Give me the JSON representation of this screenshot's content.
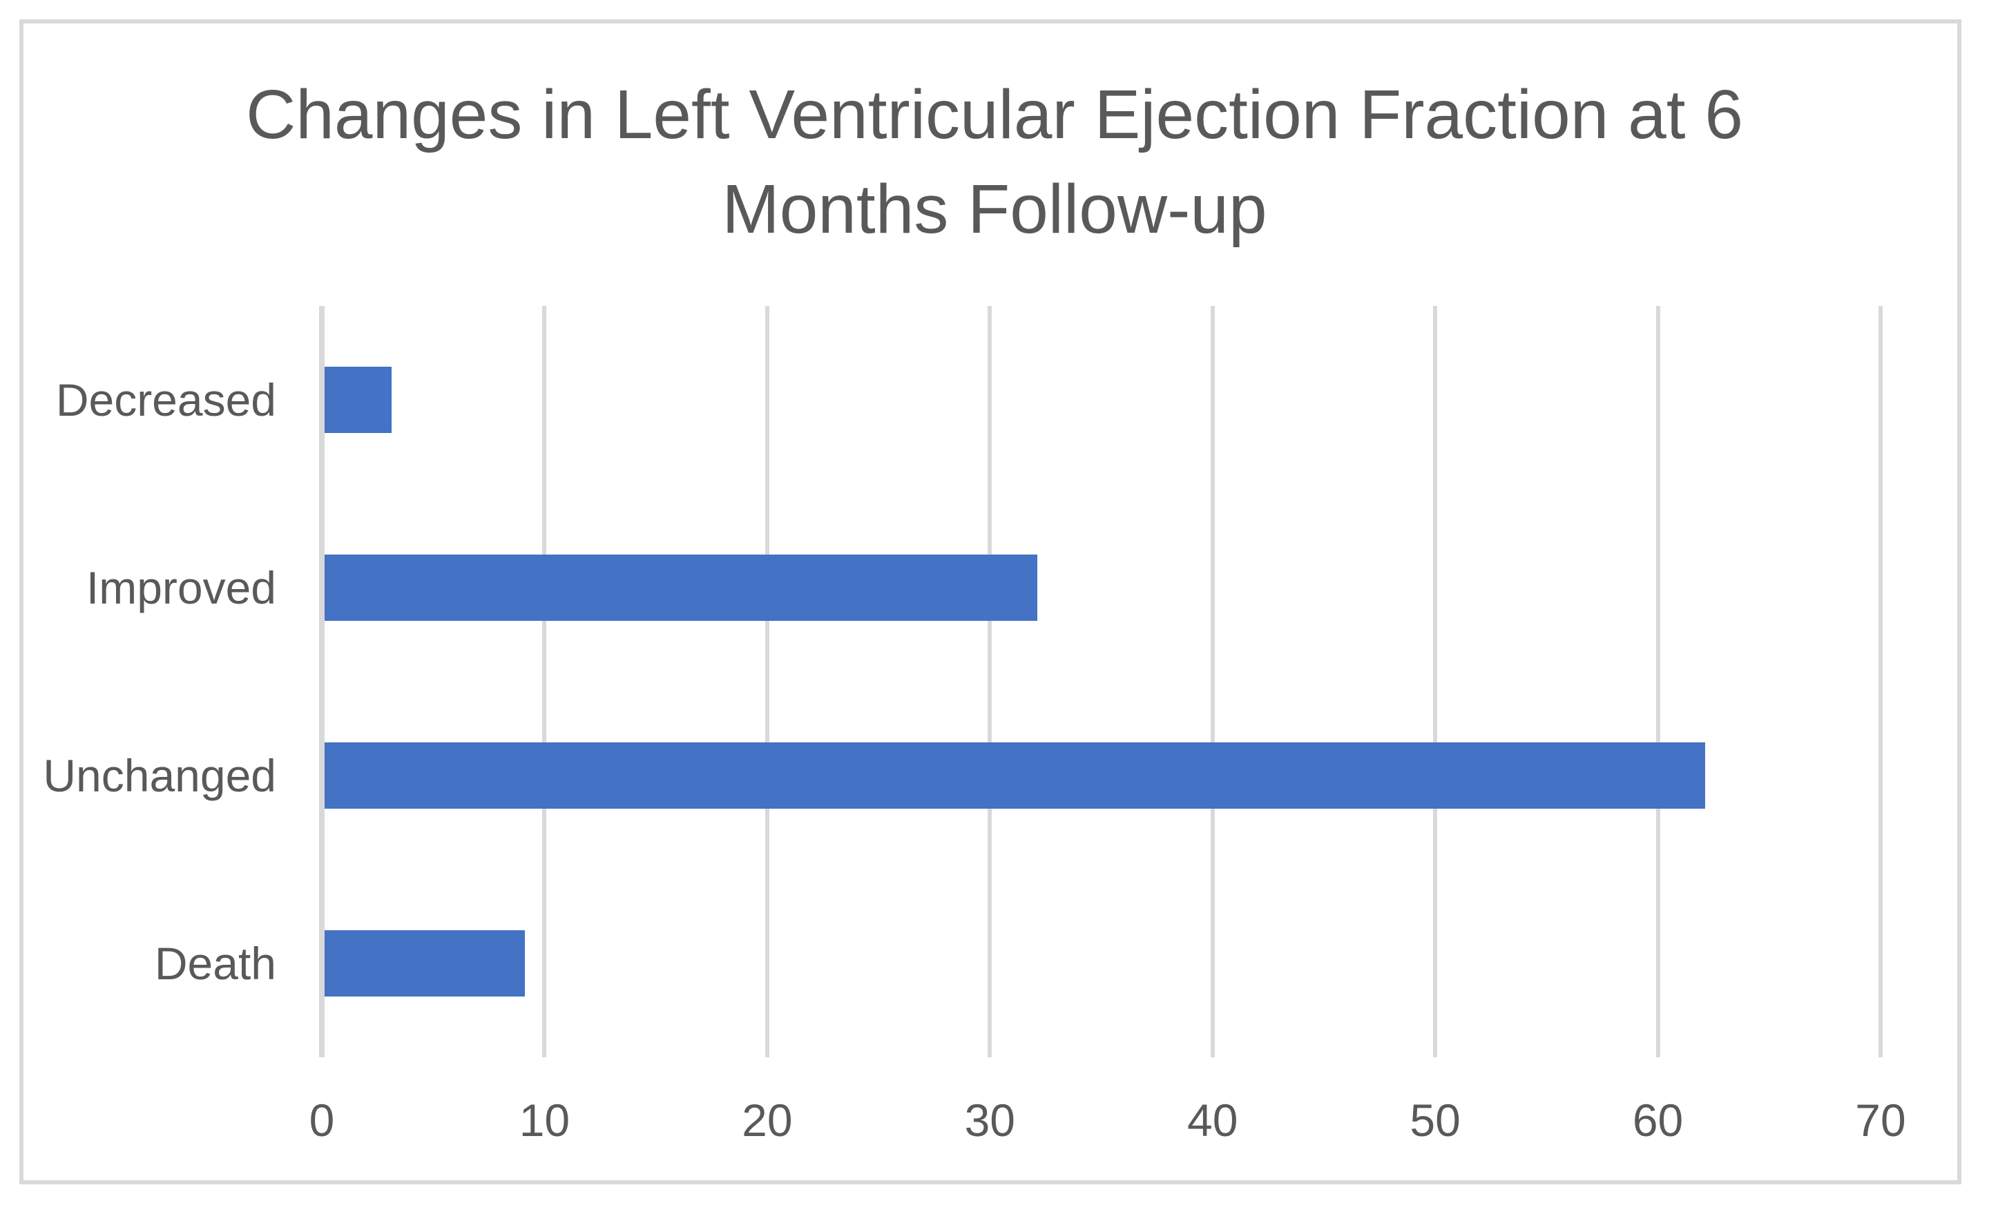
{
  "chart_data": {
    "type": "bar",
    "orientation": "horizontal",
    "title": "Changes in Left Ventricular Ejection Fraction at 6 Months Follow-up",
    "title_lines": [
      "Changes in Left Ventricular Ejection Fraction at 6",
      "Months Follow-up"
    ],
    "categories": [
      "Decreased",
      "Improved",
      "Unchanged",
      "Death"
    ],
    "values": [
      3,
      32,
      62,
      9
    ],
    "xlabel": "",
    "ylabel": "",
    "xlim": [
      0,
      70
    ],
    "xticks": [
      0,
      10,
      20,
      30,
      40,
      50,
      60,
      70
    ],
    "grid": true,
    "legend": false,
    "colors": {
      "bar": "#4472C4",
      "gridline": "#D9D9D9",
      "axis_line": "#D9D9D9",
      "text": "#595959",
      "border": "#D9D9D9",
      "background": "#FFFFFF"
    }
  }
}
